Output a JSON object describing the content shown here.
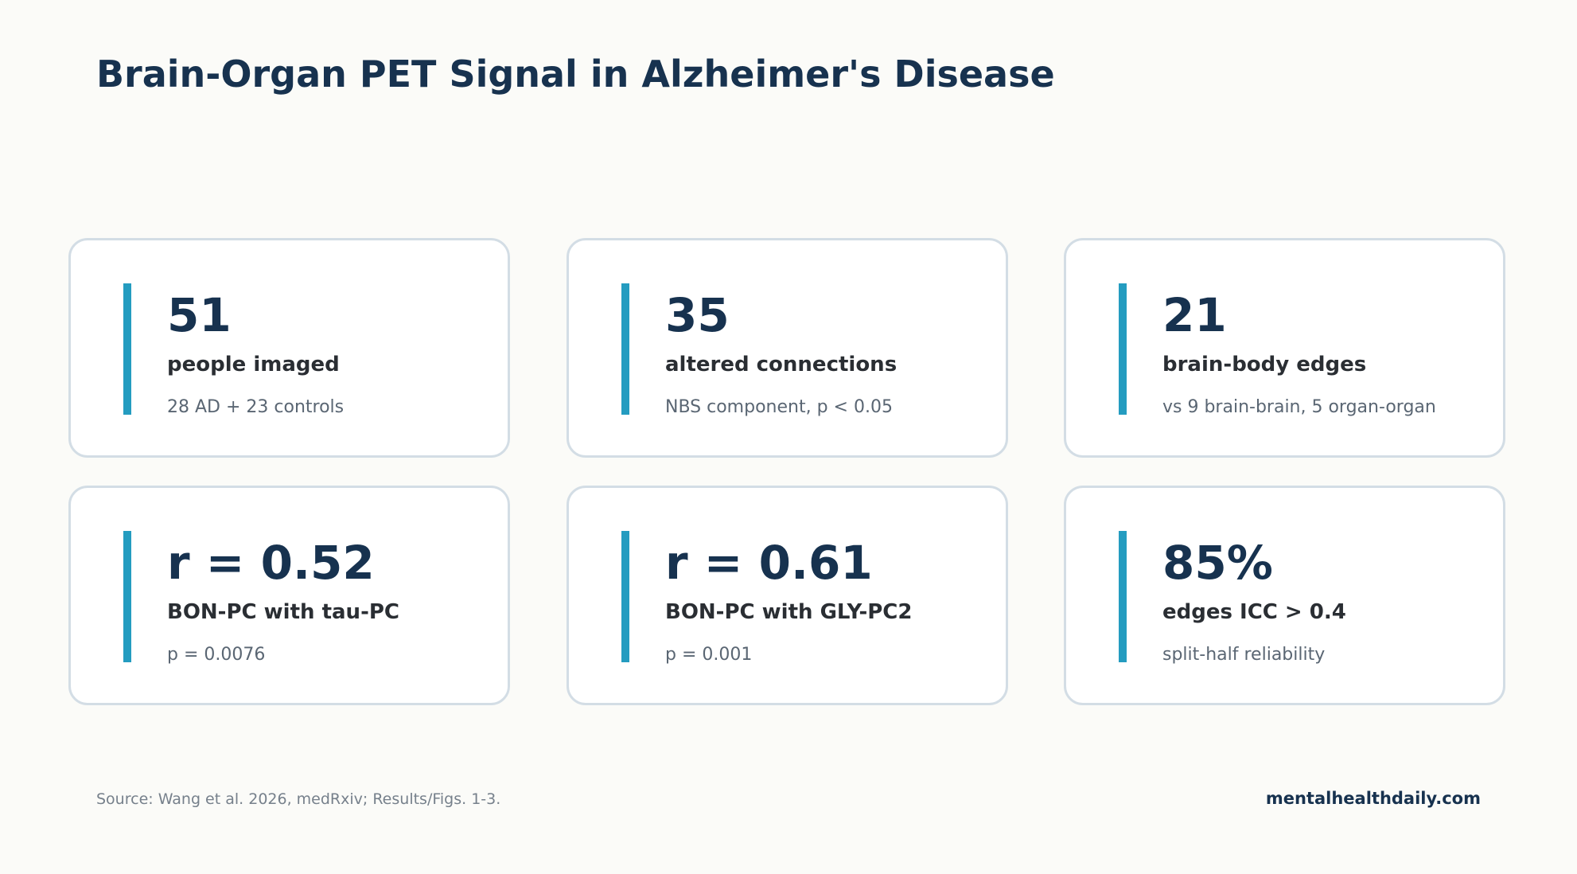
{
  "title": "Brain-Organ PET Signal in Alzheimer's Disease",
  "accent_color": "#249cc0",
  "cards": [
    {
      "value": "51",
      "label": "people imaged",
      "detail": "28 AD + 23 controls"
    },
    {
      "value": "35",
      "label": "altered connections",
      "detail": "NBS component, p < 0.05"
    },
    {
      "value": "21",
      "label": "brain-body edges",
      "detail": "vs 9 brain-brain, 5 organ-organ"
    },
    {
      "value": "r = 0.52",
      "label": "BON-PC with tau-PC",
      "detail": "p = 0.0076"
    },
    {
      "value": "r = 0.61",
      "label": "BON-PC with GLY-PC2",
      "detail": "p = 0.001"
    },
    {
      "value": "85%",
      "label": "edges ICC > 0.4",
      "detail": "split-half reliability"
    }
  ],
  "footer": {
    "source": "Source: Wang et al. 2026, medRxiv; Results/Figs. 1-3.",
    "brand": "mentalhealthdaily.com"
  }
}
